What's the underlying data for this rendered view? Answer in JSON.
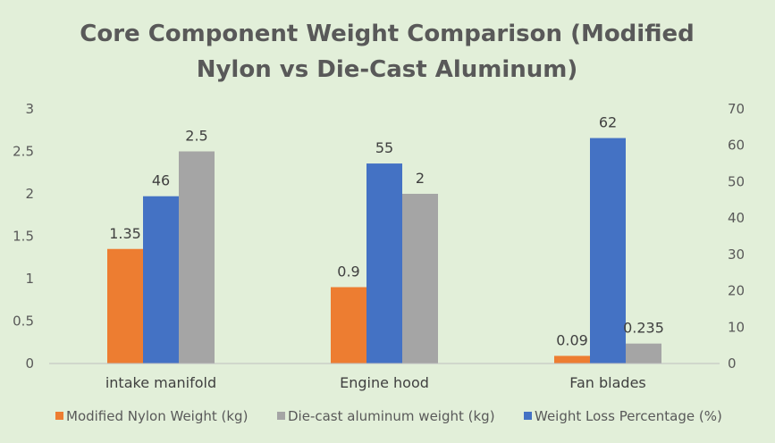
{
  "chart_data": {
    "type": "bar",
    "title_lines": [
      "Core Component Weight Comparison (Modified",
      "Nylon vs Die-Cast Aluminum)"
    ],
    "categories": [
      "intake manifold",
      "Engine hood",
      "Fan blades"
    ],
    "y_left": {
      "min": 0,
      "max": 3,
      "ticks": [
        "0",
        "0.5",
        "1",
        "1.5",
        "2",
        "2.5",
        "3"
      ]
    },
    "y_right": {
      "min": 0,
      "max": 70,
      "ticks": [
        "0",
        "10",
        "20",
        "30",
        "40",
        "50",
        "60",
        "70"
      ]
    },
    "series": [
      {
        "name": "Modified Nylon Weight (kg)",
        "color": "#ed7d31",
        "axis": "left",
        "values": [
          1.35,
          0.9,
          0.09
        ],
        "labels": [
          "1.35",
          "0.9",
          "0.09"
        ]
      },
      {
        "name": "Weight Loss Percentage (%)",
        "color": "#4472c4",
        "axis": "right",
        "values": [
          46,
          55,
          62
        ],
        "labels": [
          "46",
          "55",
          "62"
        ]
      },
      {
        "name": "Die-cast aluminum weight (kg)",
        "color": "#a5a5a5",
        "axis": "left",
        "values": [
          2.5,
          2,
          0.235
        ],
        "labels": [
          "2.5",
          "2",
          "0.235"
        ]
      }
    ],
    "legend_order": [
      0,
      2,
      1
    ],
    "legend_position": "bottom"
  }
}
